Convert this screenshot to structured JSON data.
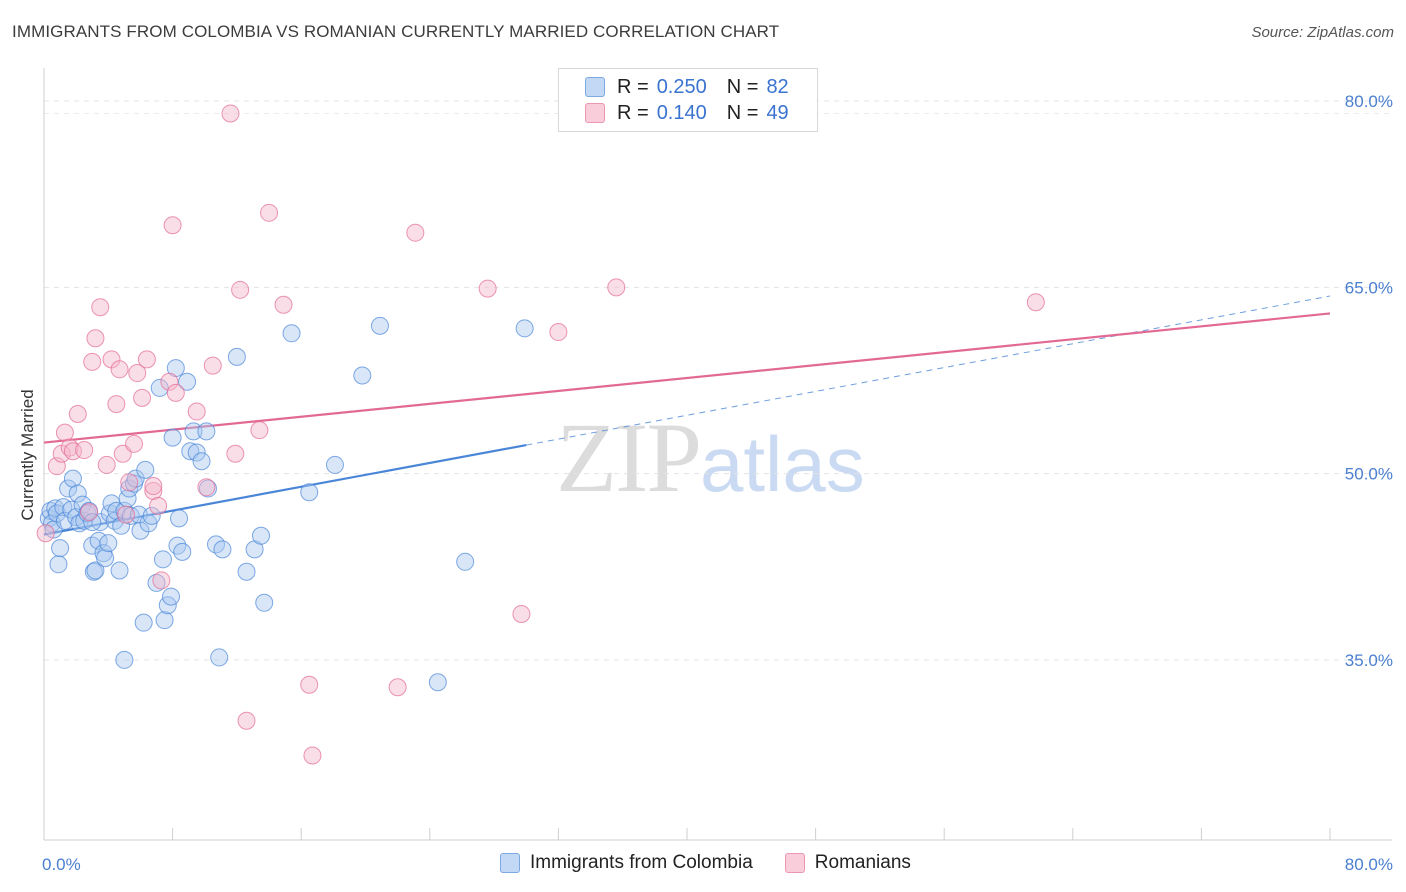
{
  "header": {
    "title": "IMMIGRANTS FROM COLOMBIA VS ROMANIAN CURRENTLY MARRIED CORRELATION CHART",
    "source": "Source: ZipAtlas.com"
  },
  "watermark": {
    "zip": "ZIP",
    "atlas": "atlas"
  },
  "legend": {
    "rows": [
      {
        "r_label": "R =",
        "r_value": "0.250",
        "n_label": "N =",
        "n_value": "82",
        "color": "#a9c8f0"
      },
      {
        "r_label": "R =",
        "r_value": "0.140",
        "n_label": "N =",
        "n_value": "49",
        "color": "#f5b6ca"
      }
    ]
  },
  "bottom_legend": {
    "items": [
      {
        "label": "Immigrants from Colombia",
        "color": "#a9c8f0"
      },
      {
        "label": "Romanians",
        "color": "#f5b6ca"
      }
    ]
  },
  "chart_data": {
    "type": "scatter",
    "title": "IMMIGRANTS FROM COLOMBIA VS ROMANIAN CURRENTLY MARRIED CORRELATION CHART",
    "xlabel": "",
    "ylabel": "Currently Married",
    "xlim": [
      0,
      80
    ],
    "ylim": [
      20.5,
      82.5
    ],
    "x_tick_labels": [
      "0.0%",
      "80.0%"
    ],
    "y_ticks": [
      35,
      50,
      65,
      80
    ],
    "y_tick_labels": [
      "35.0%",
      "50.0%",
      "65.0%",
      "80.0%"
    ],
    "grid": true,
    "series": [
      {
        "name": "Immigrants from Colombia",
        "color": "#4a86d8",
        "fill": "#a9c8f0",
        "trend": {
          "x": [
            0,
            30
          ],
          "y": [
            45.1,
            52.3
          ],
          "dashed_extension": {
            "x": [
              30,
              80
            ],
            "y": [
              52.3,
              64.3
            ]
          }
        },
        "points": [
          [
            0.3,
            46.4
          ],
          [
            0.4,
            47.0
          ],
          [
            0.5,
            46.0
          ],
          [
            0.6,
            45.5
          ],
          [
            0.7,
            47.2
          ],
          [
            0.8,
            46.8
          ],
          [
            0.9,
            42.7
          ],
          [
            1.0,
            44.0
          ],
          [
            1.2,
            47.3
          ],
          [
            1.3,
            46.2
          ],
          [
            1.5,
            48.8
          ],
          [
            1.7,
            47.1
          ],
          [
            1.8,
            49.6
          ],
          [
            2.0,
            46.5
          ],
          [
            2.1,
            48.4
          ],
          [
            2.2,
            46.0
          ],
          [
            2.4,
            47.5
          ],
          [
            2.5,
            46.2
          ],
          [
            2.7,
            46.8
          ],
          [
            2.8,
            47.0
          ],
          [
            3.0,
            44.2
          ],
          [
            3.1,
            42.1
          ],
          [
            3.2,
            42.2
          ],
          [
            3.4,
            44.6
          ],
          [
            3.5,
            46.1
          ],
          [
            3.7,
            43.6
          ],
          [
            3.8,
            43.2
          ],
          [
            4.0,
            44.4
          ],
          [
            4.1,
            46.8
          ],
          [
            4.2,
            47.6
          ],
          [
            4.4,
            46.2
          ],
          [
            4.5,
            47.0
          ],
          [
            4.7,
            42.2
          ],
          [
            4.8,
            45.8
          ],
          [
            5.0,
            47.0
          ],
          [
            5.2,
            48.0
          ],
          [
            5.3,
            48.8
          ],
          [
            5.4,
            46.6
          ],
          [
            5.6,
            49.2
          ],
          [
            5.7,
            49.6
          ],
          [
            5.9,
            46.7
          ],
          [
            6.0,
            45.4
          ],
          [
            6.2,
            38.0
          ],
          [
            6.3,
            50.3
          ],
          [
            6.5,
            46.0
          ],
          [
            6.7,
            46.6
          ],
          [
            7.0,
            41.2
          ],
          [
            7.2,
            56.9
          ],
          [
            7.4,
            43.1
          ],
          [
            7.5,
            38.2
          ],
          [
            7.7,
            39.4
          ],
          [
            7.9,
            40.1
          ],
          [
            8.0,
            52.9
          ],
          [
            8.2,
            58.5
          ],
          [
            8.3,
            44.2
          ],
          [
            8.4,
            46.4
          ],
          [
            8.6,
            43.7
          ],
          [
            8.9,
            57.4
          ],
          [
            9.1,
            51.8
          ],
          [
            9.3,
            53.4
          ],
          [
            9.5,
            51.7
          ],
          [
            9.8,
            51.0
          ],
          [
            10.1,
            53.4
          ],
          [
            10.2,
            48.8
          ],
          [
            10.7,
            44.3
          ],
          [
            10.9,
            35.2
          ],
          [
            11.1,
            43.9
          ],
          [
            12.0,
            59.4
          ],
          [
            12.6,
            42.1
          ],
          [
            13.1,
            43.9
          ],
          [
            13.5,
            45.0
          ],
          [
            13.7,
            39.6
          ],
          [
            15.4,
            61.3
          ],
          [
            16.5,
            48.5
          ],
          [
            18.1,
            50.7
          ],
          [
            19.8,
            57.9
          ],
          [
            20.9,
            61.9
          ],
          [
            24.5,
            33.2
          ],
          [
            26.2,
            42.9
          ],
          [
            29.9,
            61.7
          ],
          [
            5.0,
            35.0
          ],
          [
            3.0,
            46.1
          ]
        ]
      },
      {
        "name": "Romanians",
        "color": "#e26994",
        "fill": "#f5b6ca",
        "trend": {
          "x": [
            0,
            80
          ],
          "y": [
            52.5,
            62.9
          ]
        },
        "points": [
          [
            0.1,
            45.2
          ],
          [
            0.8,
            50.6
          ],
          [
            1.1,
            51.6
          ],
          [
            1.3,
            53.3
          ],
          [
            1.6,
            52.1
          ],
          [
            1.8,
            51.8
          ],
          [
            2.1,
            54.8
          ],
          [
            2.5,
            51.9
          ],
          [
            2.8,
            46.9
          ],
          [
            3.0,
            59.0
          ],
          [
            3.2,
            60.9
          ],
          [
            3.5,
            63.4
          ],
          [
            3.9,
            50.7
          ],
          [
            4.2,
            59.2
          ],
          [
            4.5,
            55.6
          ],
          [
            4.7,
            58.4
          ],
          [
            4.9,
            51.6
          ],
          [
            5.3,
            49.3
          ],
          [
            5.6,
            52.4
          ],
          [
            5.8,
            58.1
          ],
          [
            6.1,
            56.1
          ],
          [
            6.4,
            59.2
          ],
          [
            6.8,
            48.6
          ],
          [
            7.1,
            47.4
          ],
          [
            7.3,
            41.4
          ],
          [
            7.8,
            57.4
          ],
          [
            8.0,
            70.0
          ],
          [
            8.2,
            56.5
          ],
          [
            9.5,
            55.0
          ],
          [
            10.1,
            48.9
          ],
          [
            10.5,
            58.7
          ],
          [
            11.6,
            79.0
          ],
          [
            11.9,
            51.6
          ],
          [
            12.2,
            64.8
          ],
          [
            12.6,
            30.1
          ],
          [
            13.4,
            53.5
          ],
          [
            14.0,
            71.0
          ],
          [
            14.9,
            63.6
          ],
          [
            16.5,
            33.0
          ],
          [
            16.7,
            27.3
          ],
          [
            22.0,
            32.8
          ],
          [
            23.1,
            69.4
          ],
          [
            27.6,
            64.9
          ],
          [
            29.7,
            38.7
          ],
          [
            32.0,
            61.4
          ],
          [
            35.6,
            65.0
          ],
          [
            61.7,
            63.8
          ],
          [
            5.1,
            46.7
          ],
          [
            6.8,
            49.0
          ]
        ]
      }
    ]
  }
}
